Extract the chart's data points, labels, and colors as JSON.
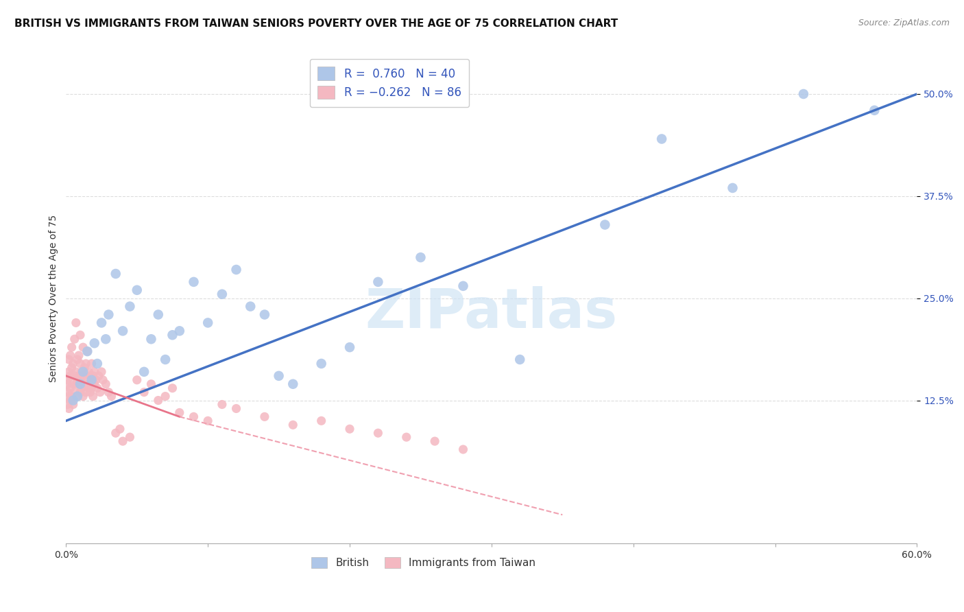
{
  "title": "BRITISH VS IMMIGRANTS FROM TAIWAN SENIORS POVERTY OVER THE AGE OF 75 CORRELATION CHART",
  "source": "Source: ZipAtlas.com",
  "ylabel": "Seniors Poverty Over the Age of 75",
  "xlim": [
    0.0,
    60.0
  ],
  "ylim": [
    -5.0,
    55.0
  ],
  "yticks": [
    12.5,
    25.0,
    37.5,
    50.0
  ],
  "ytick_labels": [
    "12.5%",
    "25.0%",
    "37.5%",
    "50.0%"
  ],
  "xticks": [
    0.0,
    10.0,
    20.0,
    30.0,
    40.0,
    50.0,
    60.0
  ],
  "xtick_labels": [
    "0.0%",
    "",
    "",
    "",
    "",
    "",
    "60.0%"
  ],
  "british_R": 0.76,
  "british_N": 40,
  "taiwan_R": -0.262,
  "taiwan_N": 86,
  "british_color": "#aec6e8",
  "taiwan_color": "#f4b8c1",
  "british_line_color": "#4472c4",
  "taiwan_line_solid_color": "#e8748a",
  "taiwan_line_dash_color": "#f0a0b0",
  "legend_color": "#3355bb",
  "watermark_text": "ZIPatlas",
  "watermark_color": "#d0e4f5",
  "background_color": "#ffffff",
  "grid_color": "#dddddd",
  "title_fontsize": 11,
  "axis_label_fontsize": 10,
  "tick_fontsize": 10,
  "british_line_x0": 0.0,
  "british_line_y0": 10.0,
  "british_line_x1": 60.0,
  "british_line_y1": 50.0,
  "taiwan_line_solid_x0": 0.0,
  "taiwan_line_solid_y0": 15.5,
  "taiwan_line_solid_x1": 8.0,
  "taiwan_line_solid_y1": 10.5,
  "taiwan_line_dash_x0": 8.0,
  "taiwan_line_dash_y0": 10.5,
  "taiwan_line_dash_x1": 35.0,
  "taiwan_line_dash_y1": -1.5,
  "british_scatter_x": [
    0.5,
    0.8,
    1.0,
    1.2,
    1.5,
    1.8,
    2.0,
    2.2,
    2.5,
    2.8,
    3.0,
    3.5,
    4.0,
    4.5,
    5.0,
    5.5,
    6.0,
    6.5,
    7.0,
    7.5,
    8.0,
    9.0,
    10.0,
    11.0,
    12.0,
    13.0,
    14.0,
    15.0,
    16.0,
    18.0,
    20.0,
    22.0,
    25.0,
    28.0,
    32.0,
    38.0,
    42.0,
    47.0,
    52.0,
    57.0
  ],
  "british_scatter_y": [
    12.5,
    13.0,
    14.5,
    16.0,
    18.5,
    15.0,
    19.5,
    17.0,
    22.0,
    20.0,
    23.0,
    28.0,
    21.0,
    24.0,
    26.0,
    16.0,
    20.0,
    23.0,
    17.5,
    20.5,
    21.0,
    27.0,
    22.0,
    25.5,
    28.5,
    24.0,
    23.0,
    15.5,
    14.5,
    17.0,
    19.0,
    27.0,
    30.0,
    26.5,
    17.5,
    34.0,
    44.5,
    38.5,
    50.0,
    48.0
  ],
  "taiwan_scatter_x": [
    0.1,
    0.1,
    0.1,
    0.1,
    0.2,
    0.2,
    0.2,
    0.2,
    0.3,
    0.3,
    0.3,
    0.3,
    0.4,
    0.4,
    0.4,
    0.5,
    0.5,
    0.5,
    0.6,
    0.6,
    0.6,
    0.7,
    0.7,
    0.7,
    0.8,
    0.8,
    0.8,
    0.9,
    0.9,
    1.0,
    1.0,
    1.0,
    1.0,
    1.1,
    1.1,
    1.2,
    1.2,
    1.2,
    1.3,
    1.3,
    1.4,
    1.4,
    1.5,
    1.5,
    1.6,
    1.6,
    1.7,
    1.7,
    1.8,
    1.8,
    1.9,
    1.9,
    2.0,
    2.0,
    2.1,
    2.2,
    2.3,
    2.4,
    2.5,
    2.6,
    2.8,
    3.0,
    3.2,
    3.5,
    3.8,
    4.0,
    4.5,
    5.0,
    5.5,
    6.0,
    6.5,
    7.0,
    7.5,
    8.0,
    9.0,
    10.0,
    11.0,
    12.0,
    14.0,
    16.0,
    18.0,
    20.0,
    22.0,
    24.0,
    26.0,
    28.0
  ],
  "taiwan_scatter_y": [
    13.5,
    14.5,
    12.0,
    15.0,
    11.5,
    16.0,
    13.0,
    17.5,
    14.0,
    12.5,
    15.5,
    18.0,
    13.0,
    16.5,
    19.0,
    14.5,
    17.0,
    12.0,
    15.5,
    20.0,
    13.5,
    16.0,
    14.5,
    22.0,
    17.5,
    13.0,
    15.0,
    18.0,
    14.5,
    15.5,
    13.5,
    17.0,
    20.5,
    16.0,
    14.0,
    15.5,
    19.0,
    13.0,
    16.5,
    14.5,
    17.0,
    13.5,
    15.0,
    18.5,
    14.0,
    16.0,
    13.5,
    15.5,
    14.0,
    17.0,
    13.0,
    15.5,
    16.0,
    14.5,
    15.0,
    14.0,
    15.5,
    13.5,
    16.0,
    15.0,
    14.5,
    13.5,
    13.0,
    8.5,
    9.0,
    7.5,
    8.0,
    15.0,
    13.5,
    14.5,
    12.5,
    13.0,
    14.0,
    11.0,
    10.5,
    10.0,
    12.0,
    11.5,
    10.5,
    9.5,
    10.0,
    9.0,
    8.5,
    8.0,
    7.5,
    6.5
  ]
}
